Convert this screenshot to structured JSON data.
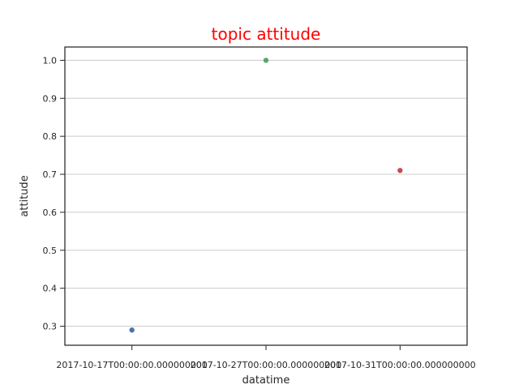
{
  "chart_data": {
    "type": "scatter",
    "title": "topic attitude",
    "title_color": "#ff0000",
    "xlabel": "datatime",
    "ylabel": "attitude",
    "categories": [
      "2017-10-17T00:00:00.000000000",
      "2017-10-27T00:00:00.000000000",
      "2017-10-31T00:00:00.000000000"
    ],
    "values": [
      0.29,
      1.0,
      0.71
    ],
    "point_colors": [
      "#4c72b0",
      "#55a868",
      "#c44e52"
    ],
    "yticks": [
      "0.3",
      "0.4",
      "0.5",
      "0.6",
      "0.7",
      "0.8",
      "0.9",
      "1.0"
    ],
    "ylim": [
      0.25,
      1.035
    ],
    "grid": "horizontal",
    "legend": "none"
  }
}
